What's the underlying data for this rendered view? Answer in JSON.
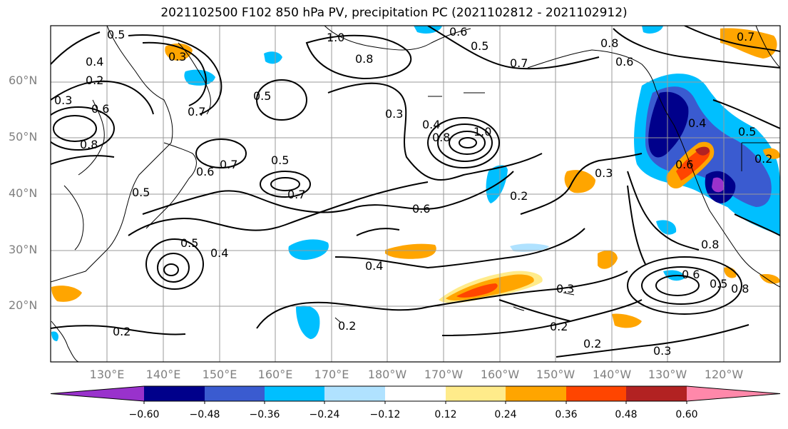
{
  "title": "2021102500 F102 850 hPa PV, precipitation PC (2021102812 - 2021102912)",
  "lat_labels": [
    "60°N",
    "50°N",
    "40°N",
    "30°N",
    "20°N"
  ],
  "lon_labels": [
    "130°E",
    "140°E",
    "150°E",
    "160°E",
    "170°E",
    "180°W",
    "170°W",
    "160°W",
    "150°W",
    "140°W",
    "130°W",
    "120°W"
  ],
  "contour_labels": [
    "0.5",
    "0.4",
    "0.3",
    "0.2",
    "0.3",
    "0.6",
    "0.8",
    "1.0",
    "0.8",
    "0.6",
    "0.5",
    "0.6",
    "0.8",
    "0.7",
    "0.5",
    "0.3",
    "0.4",
    "0.8",
    "1.0",
    "0.7",
    "0.5",
    "0.7",
    "0.6",
    "0.7",
    "0.5",
    "0.5",
    "0.4",
    "0.6",
    "0.2",
    "0.3",
    "0.4",
    "0.3",
    "0.2",
    "0.2",
    "0.2",
    "0.2",
    "0.3",
    "0.6",
    "0.4",
    "0.5",
    "0.8",
    "0.6",
    "0.5",
    "0.8",
    "0.7",
    "0.2"
  ],
  "colorbar": {
    "ticks": [
      "−0.60",
      "−0.48",
      "−0.36",
      "−0.24",
      "−0.12",
      "0.12",
      "0.24",
      "0.36",
      "0.48",
      "0.60"
    ],
    "colors": [
      "#9932cc",
      "#00008b",
      "#3a5bd0",
      "#00bfff",
      "#b0e2ff",
      "#ffffff",
      "#ffeb8a",
      "#ffa500",
      "#ff4500",
      "#b22222",
      "#ff88aa"
    ]
  }
}
